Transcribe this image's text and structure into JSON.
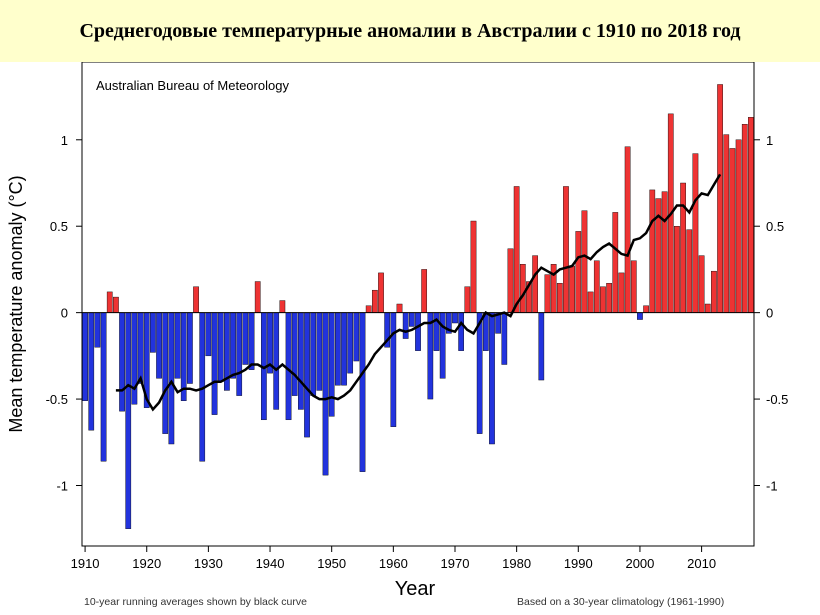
{
  "title": "Среднегодовые температурные аномалии в Австралии с 1910 по 2018 год",
  "colors": {
    "title_band": "#ffffcc",
    "positive_bar": "#ee3333",
    "negative_bar": "#2233dd",
    "running_average": "#000000"
  },
  "chart_data": {
    "type": "bar",
    "source_label": "Australian Bureau of Meteorology",
    "xlabel": "Year",
    "ylabel": "Mean temperature anomaly (°C)",
    "xlim": [
      1909.5,
      2018.5
    ],
    "ylim": [
      -1.35,
      1.45
    ],
    "x_ticks": [
      "1910",
      "1920",
      "1930",
      "1940",
      "1950",
      "1960",
      "1970",
      "1980",
      "1990",
      "2000",
      "2010"
    ],
    "y_ticks": [
      "1",
      "0.5",
      "0",
      "-0.5",
      "-1"
    ],
    "footnote_left": "10-year running averages shown by black curve",
    "footnote_right": "Based on a 30-year climatology (1961-1990)",
    "series": [
      {
        "type": "bar",
        "x": [
          1910,
          1911,
          1912,
          1913,
          1914,
          1915,
          1916,
          1917,
          1918,
          1919,
          1920,
          1921,
          1922,
          1923,
          1924,
          1925,
          1926,
          1927,
          1928,
          1929,
          1930,
          1931,
          1932,
          1933,
          1934,
          1935,
          1936,
          1937,
          1938,
          1939,
          1940,
          1941,
          1942,
          1943,
          1944,
          1945,
          1946,
          1947,
          1948,
          1949,
          1950,
          1951,
          1952,
          1953,
          1954,
          1955,
          1956,
          1957,
          1958,
          1959,
          1960,
          1961,
          1962,
          1963,
          1964,
          1965,
          1966,
          1967,
          1968,
          1969,
          1970,
          1971,
          1972,
          1973,
          1974,
          1975,
          1976,
          1977,
          1978,
          1979,
          1980,
          1981,
          1982,
          1983,
          1984,
          1985,
          1986,
          1987,
          1988,
          1989,
          1990,
          1991,
          1992,
          1993,
          1994,
          1995,
          1996,
          1997,
          1998,
          1999,
          2000,
          2001,
          2002,
          2003,
          2004,
          2005,
          2006,
          2007,
          2008,
          2009,
          2010,
          2011,
          2012,
          2013,
          2014,
          2015,
          2016,
          2017,
          2018
        ],
        "values": [
          -0.51,
          -0.68,
          -0.2,
          -0.86,
          0.12,
          0.09,
          -0.57,
          -1.25,
          -0.53,
          -0.41,
          -0.55,
          -0.23,
          -0.38,
          -0.7,
          -0.76,
          -0.38,
          -0.51,
          -0.41,
          0.15,
          -0.86,
          -0.25,
          -0.59,
          -0.4,
          -0.45,
          -0.38,
          -0.48,
          -0.3,
          -0.33,
          0.18,
          -0.62,
          -0.35,
          -0.56,
          0.07,
          -0.62,
          -0.48,
          -0.56,
          -0.72,
          -0.48,
          -0.45,
          -0.94,
          -0.6,
          -0.42,
          -0.42,
          -0.35,
          -0.28,
          -0.92,
          0.04,
          0.13,
          0.23,
          -0.2,
          -0.66,
          0.05,
          -0.15,
          -0.08,
          -0.22,
          0.25,
          -0.5,
          -0.22,
          -0.38,
          -0.12,
          -0.06,
          -0.22,
          0.15,
          0.53,
          -0.7,
          -0.22,
          -0.76,
          -0.12,
          -0.3,
          0.37,
          0.73,
          0.28,
          0.18,
          0.33,
          -0.39,
          0.22,
          0.28,
          0.17,
          0.73,
          0.27,
          0.47,
          0.59,
          0.12,
          0.3,
          0.15,
          0.17,
          0.58,
          0.23,
          0.96,
          0.3,
          -0.04,
          0.04,
          0.71,
          0.66,
          0.7,
          1.15,
          0.5,
          0.75,
          0.48,
          0.92,
          0.33,
          0.05,
          0.24,
          1.32,
          1.03,
          0.95,
          1.0,
          1.09,
          1.13
        ]
      },
      {
        "type": "line",
        "name": "",
        "x": [
          1915,
          1916,
          1917,
          1918,
          1919,
          1920,
          1921,
          1922,
          1923,
          1924,
          1925,
          1926,
          1927,
          1928,
          1929,
          1930,
          1931,
          1932,
          1933,
          1934,
          1935,
          1936,
          1937,
          1938,
          1939,
          1940,
          1941,
          1942,
          1943,
          1944,
          1945,
          1946,
          1947,
          1948,
          1949,
          1950,
          1951,
          1952,
          1953,
          1954,
          1955,
          1956,
          1957,
          1958,
          1959,
          1960,
          1961,
          1962,
          1963,
          1964,
          1965,
          1966,
          1967,
          1968,
          1969,
          1970,
          1971,
          1972,
          1973,
          1974,
          1975,
          1976,
          1977,
          1978,
          1979,
          1980,
          1981,
          1982,
          1983,
          1984,
          1985,
          1986,
          1987,
          1988,
          1989,
          1990,
          1991,
          1992,
          1993,
          1994,
          1995,
          1996,
          1997,
          1998,
          1999,
          2000,
          2001,
          2002,
          2003,
          2004,
          2005,
          2006,
          2007,
          2008,
          2009,
          2010,
          2011,
          2012,
          2013
        ],
        "values": [
          -0.45,
          -0.45,
          -0.42,
          -0.44,
          -0.38,
          -0.5,
          -0.56,
          -0.52,
          -0.45,
          -0.4,
          -0.46,
          -0.44,
          -0.44,
          -0.45,
          -0.44,
          -0.42,
          -0.4,
          -0.4,
          -0.38,
          -0.36,
          -0.35,
          -0.33,
          -0.3,
          -0.3,
          -0.32,
          -0.3,
          -0.33,
          -0.3,
          -0.33,
          -0.36,
          -0.4,
          -0.44,
          -0.48,
          -0.5,
          -0.5,
          -0.49,
          -0.5,
          -0.48,
          -0.45,
          -0.4,
          -0.35,
          -0.3,
          -0.24,
          -0.2,
          -0.16,
          -0.12,
          -0.1,
          -0.11,
          -0.1,
          -0.08,
          -0.06,
          -0.06,
          -0.04,
          -0.08,
          -0.1,
          -0.11,
          -0.06,
          -0.1,
          -0.12,
          -0.06,
          0.0,
          -0.02,
          -0.01,
          0.0,
          -0.02,
          0.05,
          0.1,
          0.16,
          0.22,
          0.26,
          0.24,
          0.22,
          0.25,
          0.26,
          0.27,
          0.32,
          0.33,
          0.31,
          0.35,
          0.38,
          0.4,
          0.37,
          0.34,
          0.33,
          0.42,
          0.43,
          0.46,
          0.53,
          0.56,
          0.53,
          0.57,
          0.62,
          0.62,
          0.58,
          0.65,
          0.69,
          0.68,
          0.74,
          0.8
        ]
      }
    ]
  }
}
